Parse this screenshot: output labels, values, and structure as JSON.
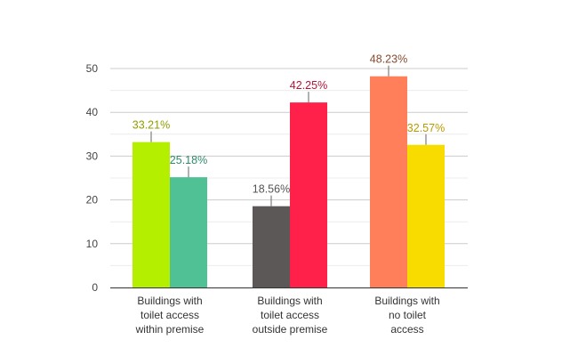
{
  "chart_data": {
    "type": "bar",
    "ylim": [
      0,
      50
    ],
    "yticks": [
      0,
      10,
      20,
      30,
      40,
      50
    ],
    "grid": true,
    "groups": [
      {
        "label_lines": [
          "Buildings with",
          "toilet access",
          "within premise"
        ],
        "bars": [
          {
            "value": 33.21,
            "label": "33.21%",
            "color": "#b5ef00",
            "label_color": "#8f9e00"
          },
          {
            "value": 25.18,
            "label": "25.18%",
            "color": "#4fc195",
            "label_color": "#2e8a6a"
          }
        ]
      },
      {
        "label_lines": [
          "Buildings with",
          "toilet access",
          "outside premise"
        ],
        "bars": [
          {
            "value": 18.56,
            "label": "18.56%",
            "color": "#5c5858",
            "label_color": "#555555"
          },
          {
            "value": 42.25,
            "label": "42.25%",
            "color": "#ff2149",
            "label_color": "#b0163a"
          }
        ]
      },
      {
        "label_lines": [
          "Buildings with",
          "no toilet",
          "access"
        ],
        "bars": [
          {
            "value": 48.23,
            "label": "48.23%",
            "color": "#ff7f5a",
            "label_color": "#8a4a2e"
          },
          {
            "value": 32.57,
            "label": "32.57%",
            "color": "#f8dc00",
            "label_color": "#b89a00"
          }
        ]
      }
    ]
  }
}
